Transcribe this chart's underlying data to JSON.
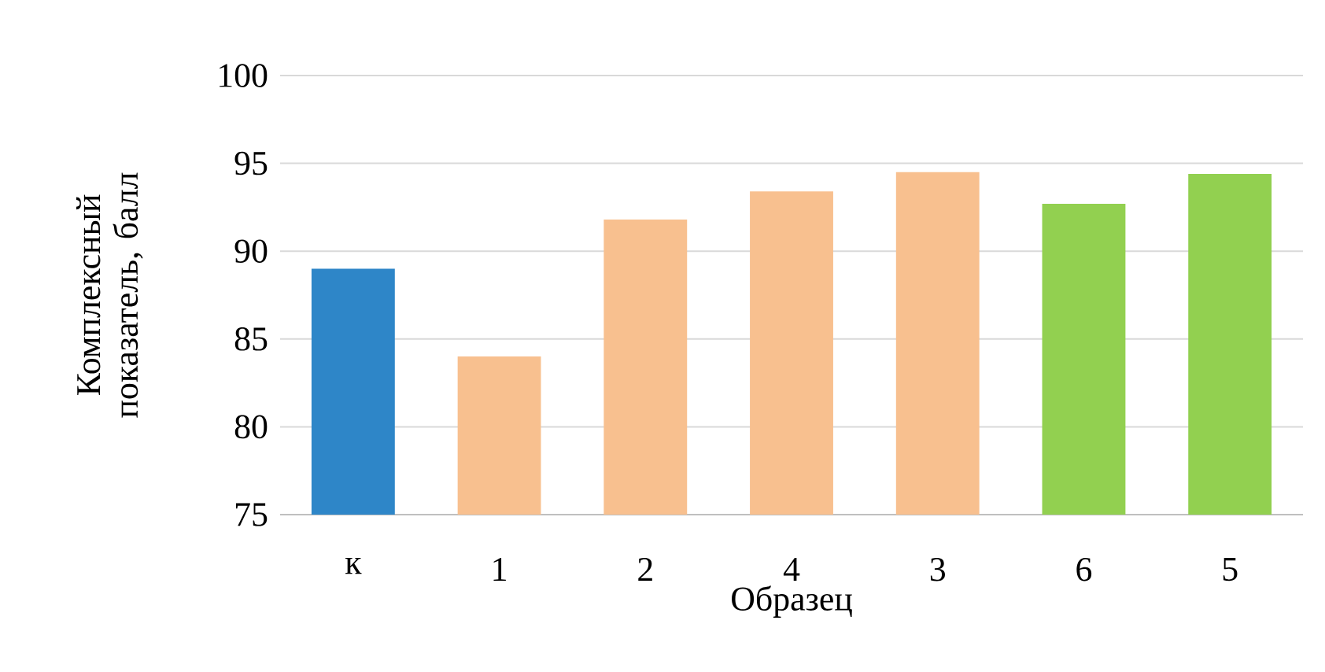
{
  "chart_data": {
    "type": "bar",
    "xlabel": "Образец",
    "ylabel": "Комплексный показатель, балл",
    "categories": [
      "к",
      "1",
      "2",
      "4",
      "3",
      "6",
      "5"
    ],
    "values": [
      89.0,
      84.0,
      91.8,
      93.4,
      94.5,
      92.7,
      94.4
    ],
    "colors": [
      "#2e86c8",
      "#f8c08f",
      "#f8c08f",
      "#f8c08f",
      "#f8c08f",
      "#92d050",
      "#92d050"
    ],
    "ylim": [
      75,
      100
    ],
    "yticks": [
      75,
      80,
      85,
      90,
      95,
      100
    ],
    "grid": "y"
  }
}
